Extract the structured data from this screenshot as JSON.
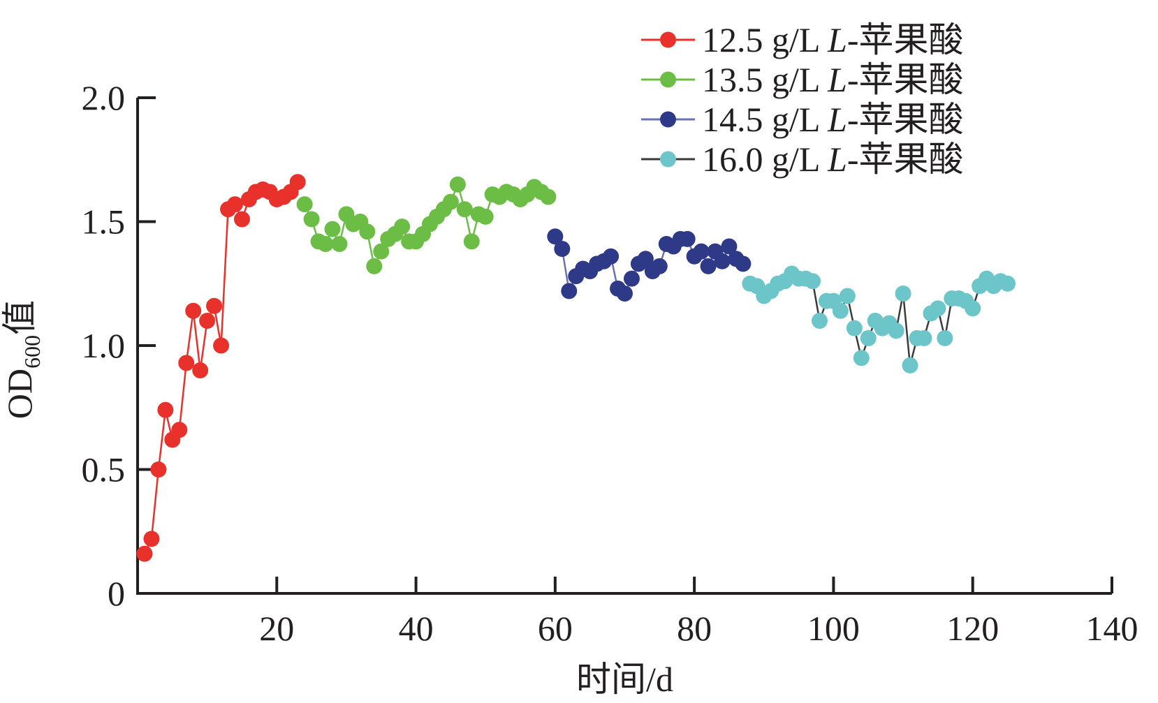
{
  "chart_data": {
    "type": "line",
    "xlabel": "时间/d",
    "ylabel": {
      "main": "OD",
      "subscript": "600",
      "suffix": "值"
    },
    "xlim": [
      0,
      140
    ],
    "ylim": [
      0,
      2.0
    ],
    "xticks": [
      {
        "value": 20,
        "label": "20"
      },
      {
        "value": 40,
        "label": "40"
      },
      {
        "value": 60,
        "label": "60"
      },
      {
        "value": 80,
        "label": "80"
      },
      {
        "value": 100,
        "label": "100"
      },
      {
        "value": 120,
        "label": "120"
      },
      {
        "value": 140,
        "label": "140"
      }
    ],
    "yticks": [
      {
        "value": 0,
        "label": "0"
      },
      {
        "value": 0.5,
        "label": "0.5"
      },
      {
        "value": 1.0,
        "label": "1.0"
      },
      {
        "value": 1.5,
        "label": "1.5"
      },
      {
        "value": 2.0,
        "label": "2.0"
      }
    ],
    "grid": false,
    "legend_position": "top-right",
    "series": [
      {
        "name": "12.5 g/L L-苹果酸",
        "legend": {
          "prefix": "12.5 g/L ",
          "italic": "L",
          "suffix": "-苹果酸"
        },
        "color": "#e8312a",
        "line_color": "#e8312a",
        "x": [
          1,
          2,
          3,
          4,
          5,
          6,
          7,
          8,
          9,
          10,
          11,
          12,
          13,
          14,
          15,
          16,
          17,
          18,
          19,
          20,
          21,
          22,
          23
        ],
        "y": [
          0.16,
          0.22,
          0.5,
          0.74,
          0.62,
          0.66,
          0.93,
          1.14,
          0.9,
          1.1,
          1.16,
          1.0,
          1.55,
          1.57,
          1.51,
          1.59,
          1.62,
          1.63,
          1.62,
          1.59,
          1.6,
          1.62,
          1.66
        ]
      },
      {
        "name": "13.5 g/L L-苹果酸",
        "legend": {
          "prefix": "13.5 g/L ",
          "italic": "L",
          "suffix": "-苹果酸"
        },
        "color": "#6bbd45",
        "line_color": "#6bbd45",
        "x": [
          24,
          25,
          26,
          27,
          28,
          29,
          30,
          31,
          32,
          33,
          34,
          35,
          36,
          37,
          38,
          39,
          40,
          41,
          42,
          43,
          44,
          45,
          46,
          47,
          48,
          49,
          50,
          51,
          52,
          53,
          54,
          55,
          56,
          57,
          58,
          59
        ],
        "y": [
          1.57,
          1.51,
          1.42,
          1.41,
          1.47,
          1.41,
          1.53,
          1.49,
          1.5,
          1.46,
          1.32,
          1.38,
          1.43,
          1.45,
          1.48,
          1.42,
          1.42,
          1.45,
          1.49,
          1.52,
          1.55,
          1.58,
          1.65,
          1.55,
          1.42,
          1.53,
          1.52,
          1.61,
          1.6,
          1.62,
          1.61,
          1.59,
          1.61,
          1.64,
          1.62,
          1.6
        ]
      },
      {
        "name": "14.5 g/L L-苹果酸",
        "legend": {
          "prefix": "14.5 g/L ",
          "italic": "L",
          "suffix": "-苹果酸"
        },
        "color": "#2e3a87",
        "line_color": "#6a6fb8",
        "x": [
          60,
          61,
          62,
          63,
          64,
          65,
          66,
          67,
          68,
          69,
          70,
          71,
          72,
          73,
          74,
          75,
          76,
          77,
          78,
          79,
          80,
          81,
          82,
          83,
          84,
          85,
          86,
          87
        ],
        "y": [
          1.44,
          1.39,
          1.22,
          1.28,
          1.31,
          1.3,
          1.33,
          1.34,
          1.36,
          1.23,
          1.21,
          1.27,
          1.33,
          1.35,
          1.3,
          1.32,
          1.41,
          1.4,
          1.43,
          1.43,
          1.36,
          1.38,
          1.32,
          1.38,
          1.34,
          1.4,
          1.35,
          1.33
        ]
      },
      {
        "name": "16.0 g/L L-苹果酸",
        "legend": {
          "prefix": "16.0 g/L ",
          "italic": "L",
          "suffix": "-苹果酸"
        },
        "color": "#6cc5c9",
        "line_color": "#3a3a3a",
        "x": [
          88,
          89,
          90,
          91,
          92,
          93,
          94,
          95,
          96,
          97,
          98,
          99,
          100,
          101,
          102,
          103,
          104,
          105,
          106,
          107,
          108,
          109,
          110,
          111,
          112,
          113,
          114,
          115,
          116,
          117,
          118,
          119,
          120,
          121,
          122,
          123,
          124,
          125
        ],
        "y": [
          1.25,
          1.24,
          1.2,
          1.22,
          1.25,
          1.26,
          1.29,
          1.27,
          1.27,
          1.26,
          1.1,
          1.18,
          1.18,
          1.14,
          1.2,
          1.07,
          0.95,
          1.03,
          1.1,
          1.07,
          1.09,
          1.06,
          1.21,
          0.92,
          1.03,
          1.03,
          1.13,
          1.15,
          1.03,
          1.19,
          1.19,
          1.18,
          1.15,
          1.24,
          1.27,
          1.24,
          1.26,
          1.25
        ]
      }
    ]
  }
}
